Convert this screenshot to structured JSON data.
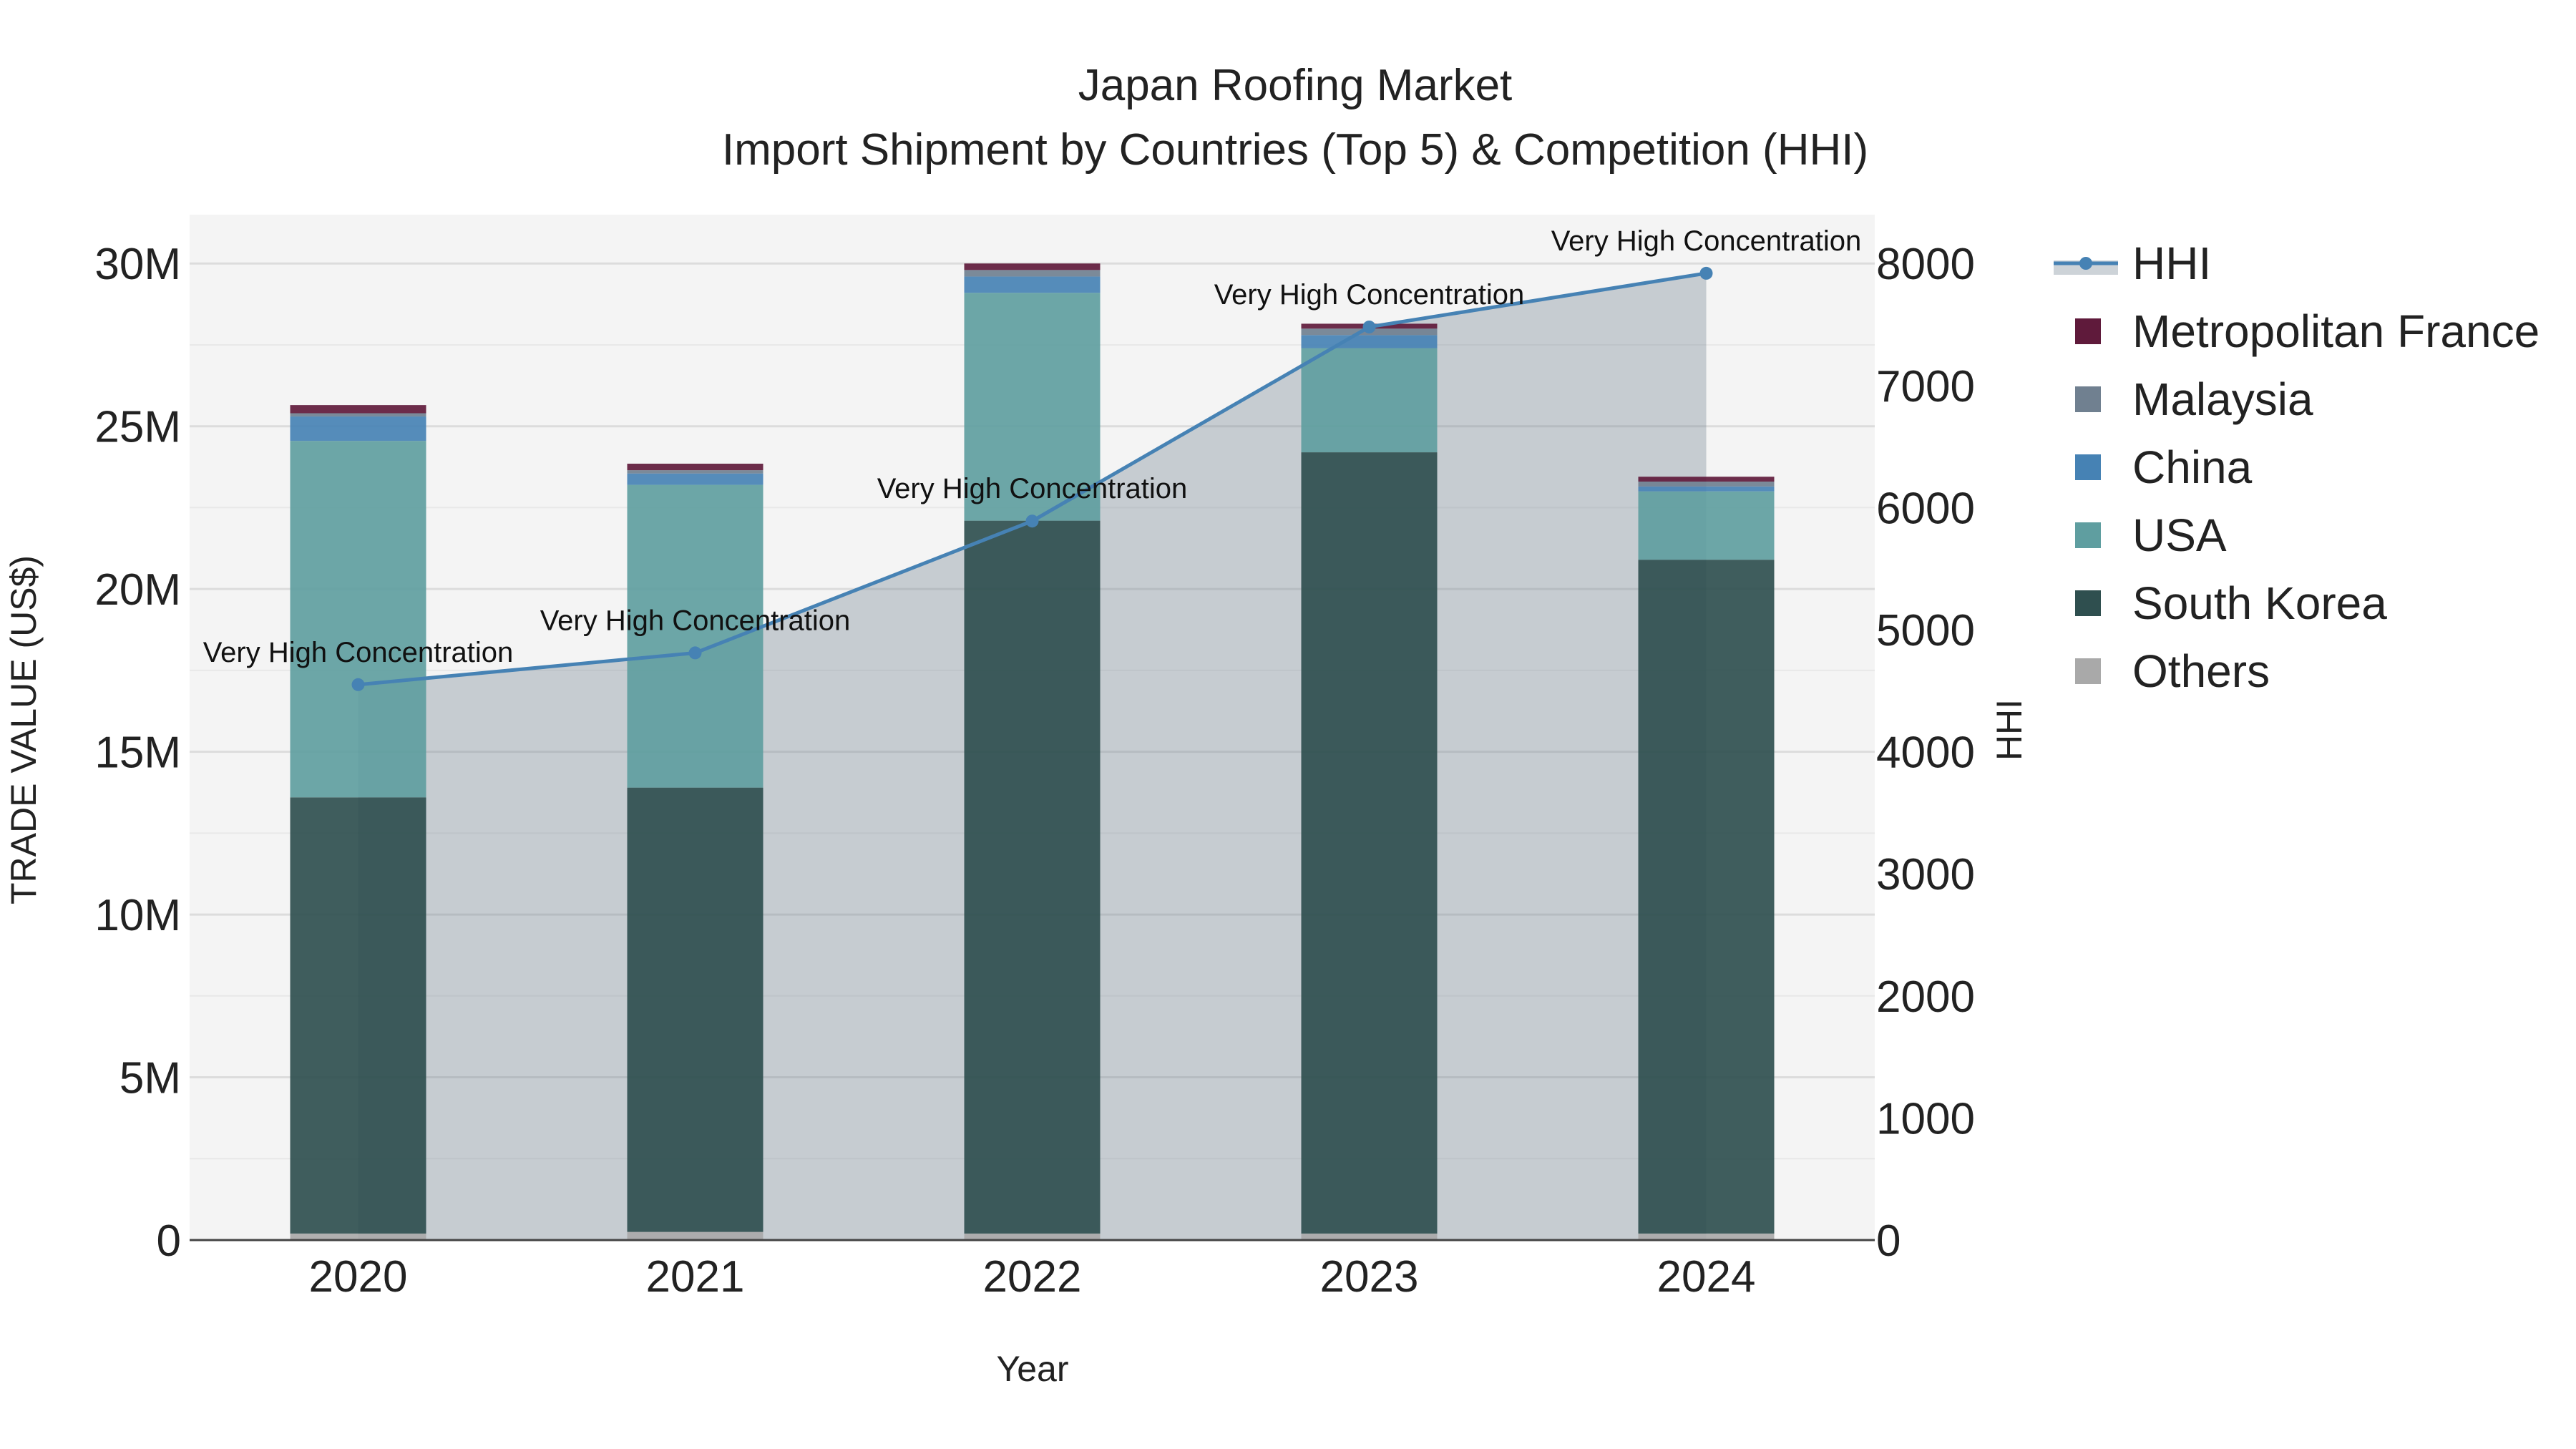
{
  "chart_data": {
    "type": "bar",
    "stacked": true,
    "title": "Japan Roofing Market",
    "subtitle": "Import Shipment by Countries (Top 5) & Competition (HHI)",
    "xlabel": "Year",
    "ylabel": "TRADE VALUE (US$)",
    "y2label": "HHI",
    "categories": [
      "2020",
      "2021",
      "2022",
      "2023",
      "2024"
    ],
    "ylim": [
      0,
      31500000
    ],
    "y2lim": [
      0,
      8400
    ],
    "y_ticks": [
      0,
      5000000,
      10000000,
      15000000,
      20000000,
      25000000,
      30000000
    ],
    "y_tick_labels": [
      "0",
      "5M",
      "10M",
      "15M",
      "20M",
      "25M",
      "30M"
    ],
    "y2_ticks": [
      0,
      1000,
      2000,
      3000,
      4000,
      5000,
      6000,
      7000,
      8000
    ],
    "y2_tick_labels": [
      "0",
      "1000",
      "2000",
      "3000",
      "4000",
      "5000",
      "6000",
      "7000",
      "8000"
    ],
    "grid": true,
    "series": [
      {
        "name": "Others",
        "color": "#a9a9a9",
        "values": [
          200000,
          250000,
          200000,
          200000,
          200000
        ]
      },
      {
        "name": "South Korea",
        "color": "#2f4f4f",
        "values": [
          13400000,
          13650000,
          21900000,
          24000000,
          20700000
        ]
      },
      {
        "name": "USA",
        "color": "#5f9ea0",
        "values": [
          10950000,
          9300000,
          7000000,
          3200000,
          2100000
        ]
      },
      {
        "name": "China",
        "color": "#4682b4",
        "values": [
          750000,
          350000,
          500000,
          400000,
          150000
        ]
      },
      {
        "name": "Malaysia",
        "color": "#708090",
        "values": [
          100000,
          100000,
          200000,
          200000,
          150000
        ]
      },
      {
        "name": "Metropolitan France",
        "color": "#5f1a3b",
        "values": [
          250000,
          200000,
          200000,
          150000,
          150000
        ]
      }
    ],
    "hhi": {
      "name": "HHI",
      "color": "#4682b4",
      "values": [
        4550,
        4810,
        5890,
        7480,
        7920
      ],
      "labels": [
        "Very High Concentration",
        "Very High Concentration",
        "Very High Concentration",
        "Very High Concentration",
        "Very High Concentration"
      ]
    },
    "legend": [
      "HHI",
      "Metropolitan France",
      "Malaysia",
      "China",
      "USA",
      "South Korea",
      "Others"
    ],
    "legend_position": "right"
  }
}
